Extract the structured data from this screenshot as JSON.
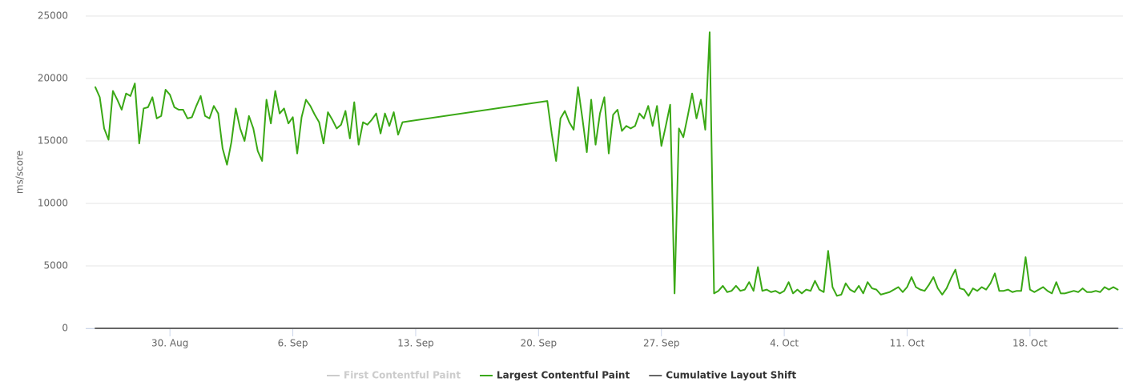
{
  "chart_data": {
    "type": "line",
    "y_label": "ms/score",
    "xlim": [
      -4.8,
      54.3
    ],
    "xticks": [
      {
        "value": 0,
        "label": "30. Aug"
      },
      {
        "value": 7,
        "label": "6. Sep"
      },
      {
        "value": 14,
        "label": "13. Sep"
      },
      {
        "value": 21,
        "label": "20. Sep"
      },
      {
        "value": 28,
        "label": "27. Sep"
      },
      {
        "value": 35,
        "label": "4. Oct"
      },
      {
        "value": 42,
        "label": "11. Oct"
      },
      {
        "value": 49,
        "label": "18. Oct"
      }
    ],
    "ylim": [
      0,
      25000
    ],
    "yticks": [
      0,
      5000,
      10000,
      15000,
      20000,
      25000
    ],
    "grid": true,
    "legend": "bottom",
    "x": [
      -4.25,
      -4,
      -3.75,
      -3.5,
      -3.25,
      -3,
      -2.75,
      -2.5,
      -2.25,
      -2,
      -1.75,
      -1.5,
      -1.25,
      -1,
      -0.75,
      -0.5,
      -0.25,
      0,
      0.25,
      0.5,
      0.75,
      1,
      1.25,
      1.5,
      1.75,
      2,
      2.25,
      2.5,
      2.75,
      3,
      3.25,
      3.5,
      3.75,
      4,
      4.25,
      4.5,
      4.75,
      5,
      5.25,
      5.5,
      5.75,
      6,
      6.25,
      6.5,
      6.75,
      7,
      7.25,
      7.5,
      7.75,
      8,
      8.25,
      8.5,
      8.75,
      9,
      9.25,
      9.5,
      9.75,
      10,
      10.25,
      10.5,
      10.75,
      11,
      11.25,
      11.5,
      11.75,
      12,
      12.25,
      12.5,
      12.75,
      13,
      13.25,
      21.5,
      21.75,
      22,
      22.25,
      22.5,
      22.75,
      23,
      23.25,
      23.5,
      23.75,
      24,
      24.25,
      24.5,
      24.75,
      25,
      25.25,
      25.5,
      25.75,
      26,
      26.25,
      26.5,
      26.75,
      27,
      27.25,
      27.5,
      27.75,
      28,
      28.25,
      28.5,
      28.75,
      29,
      29.25,
      29.5,
      29.75,
      30,
      30.25,
      30.5,
      30.75,
      31,
      31.25,
      31.5,
      31.75,
      32,
      32.25,
      32.5,
      32.75,
      33,
      33.25,
      33.5,
      33.75,
      34,
      34.25,
      34.5,
      34.75,
      35,
      35.25,
      35.5,
      35.75,
      36,
      36.25,
      36.5,
      36.75,
      37,
      37.25,
      37.5,
      37.75,
      38,
      38.25,
      38.5,
      38.75,
      39,
      39.25,
      39.5,
      39.75,
      40,
      40.25,
      40.5,
      40.75,
      41,
      41.25,
      41.5,
      41.75,
      42,
      42.25,
      42.5,
      42.75,
      43,
      43.25,
      43.5,
      43.75,
      44,
      44.25,
      44.5,
      44.75,
      45,
      45.25,
      45.5,
      45.75,
      46,
      46.25,
      46.5,
      46.75,
      47,
      47.25,
      47.5,
      47.75,
      48,
      48.25,
      48.5,
      48.75,
      49,
      49.25,
      49.5,
      49.75,
      50,
      50.25,
      50.5,
      50.75,
      51,
      51.25,
      51.5,
      51.75,
      52,
      52.25,
      52.5,
      52.75,
      53,
      53.25,
      53.5,
      53.75,
      54
    ],
    "series": [
      {
        "name": "First Contentful Paint",
        "color": "#cccccc",
        "visible": false
      },
      {
        "name": "Largest Contentful Paint",
        "color": "#3aa815",
        "visible": true,
        "values": [
          19300,
          18500,
          16000,
          15100,
          19000,
          18300,
          17500,
          18800,
          18600,
          19600,
          14800,
          17600,
          17700,
          18500,
          16800,
          17000,
          19100,
          18700,
          17700,
          17500,
          17500,
          16800,
          16900,
          17800,
          18600,
          17000,
          16800,
          17800,
          17200,
          14400,
          13100,
          14900,
          17600,
          16000,
          15000,
          17000,
          16000,
          14200,
          13400,
          18300,
          16400,
          19000,
          17200,
          17600,
          16400,
          16900,
          14000,
          16900,
          18300,
          17800,
          17100,
          16500,
          14800,
          17300,
          16700,
          16000,
          16300,
          17400,
          15200,
          18100,
          14700,
          16500,
          16300,
          16700,
          17200,
          15600,
          17200,
          16200,
          17300,
          15500,
          16500,
          18200,
          15600,
          13400,
          16800,
          17400,
          16500,
          15900,
          19300,
          16800,
          14100,
          18300,
          14700,
          17200,
          18500,
          14000,
          17100,
          17500,
          15800,
          16200,
          16000,
          16200,
          17200,
          16800,
          17800,
          16200,
          17800,
          14600,
          16200,
          17900,
          2800,
          16000,
          15300,
          17000,
          18800,
          16800,
          18300,
          15900,
          23700,
          2800,
          3000,
          3400,
          2900,
          3000,
          3400,
          3000,
          3100,
          3700,
          3000,
          4900,
          3000,
          3100,
          2900,
          3000,
          2800,
          3000,
          3700,
          2800,
          3100,
          2800,
          3100,
          3000,
          3800,
          3100,
          2900,
          6200,
          3300,
          2600,
          2700,
          3600,
          3100,
          2900,
          3400,
          2800,
          3700,
          3200,
          3100,
          2700,
          2800,
          2900,
          3100,
          3300,
          2900,
          3300,
          4100,
          3300,
          3100,
          3000,
          3500,
          4100,
          3200,
          2700,
          3200,
          4000,
          4700,
          3200,
          3100,
          2600,
          3200,
          3000,
          3300,
          3100,
          3600,
          4400,
          3000,
          3000,
          3100,
          2900,
          3000,
          3000,
          5700,
          3100,
          2900,
          3100,
          3300,
          3000,
          2800,
          3700,
          2800,
          2800,
          2900,
          3000,
          2900,
          3200,
          2900,
          2900,
          3000,
          2900,
          3300,
          3100,
          3300,
          3100
        ]
      },
      {
        "name": "Cumulative Layout Shift",
        "color": "#666666",
        "visible": true,
        "values": [
          0,
          0,
          0,
          0,
          0,
          0,
          0,
          0,
          0,
          0,
          0,
          0,
          0,
          0,
          0,
          0,
          0,
          0,
          0,
          0,
          0,
          0,
          0,
          0,
          0,
          0,
          0,
          0,
          0,
          0,
          0,
          0,
          0,
          0,
          0,
          0,
          0,
          0,
          0,
          0,
          0,
          0,
          0,
          0,
          0,
          0,
          0,
          0,
          0,
          0,
          0,
          0,
          0,
          0,
          0,
          0,
          0,
          0,
          0,
          0,
          0,
          0,
          0,
          0,
          0,
          0,
          0,
          0,
          0,
          0,
          0,
          0,
          0,
          0,
          0,
          0,
          0,
          0,
          0,
          0,
          0,
          0,
          0,
          0,
          0,
          0,
          0,
          0,
          0,
          0,
          0,
          0,
          0,
          0,
          0,
          0,
          0,
          0,
          0,
          0,
          0,
          0,
          0,
          0,
          0,
          0,
          0,
          0,
          0,
          0,
          0,
          0,
          0,
          0,
          0,
          0,
          0,
          0,
          0,
          0,
          0,
          0,
          0,
          0,
          0,
          0,
          0,
          0,
          0,
          0,
          0,
          0,
          0,
          0,
          0,
          0,
          0,
          0,
          0,
          0,
          0,
          0,
          0,
          0,
          0,
          0,
          0,
          0,
          0,
          0,
          0,
          0,
          0,
          0,
          0,
          0,
          0,
          0,
          0,
          0,
          0,
          0,
          0,
          0,
          0,
          0,
          0,
          0,
          0,
          0,
          0,
          0,
          0,
          0,
          0,
          0,
          0,
          0,
          0,
          0,
          0,
          0,
          0,
          0,
          0,
          0,
          0,
          0,
          0,
          0,
          0,
          0,
          0,
          0,
          0,
          0,
          0,
          0,
          0,
          0,
          0,
          0
        ]
      }
    ]
  }
}
